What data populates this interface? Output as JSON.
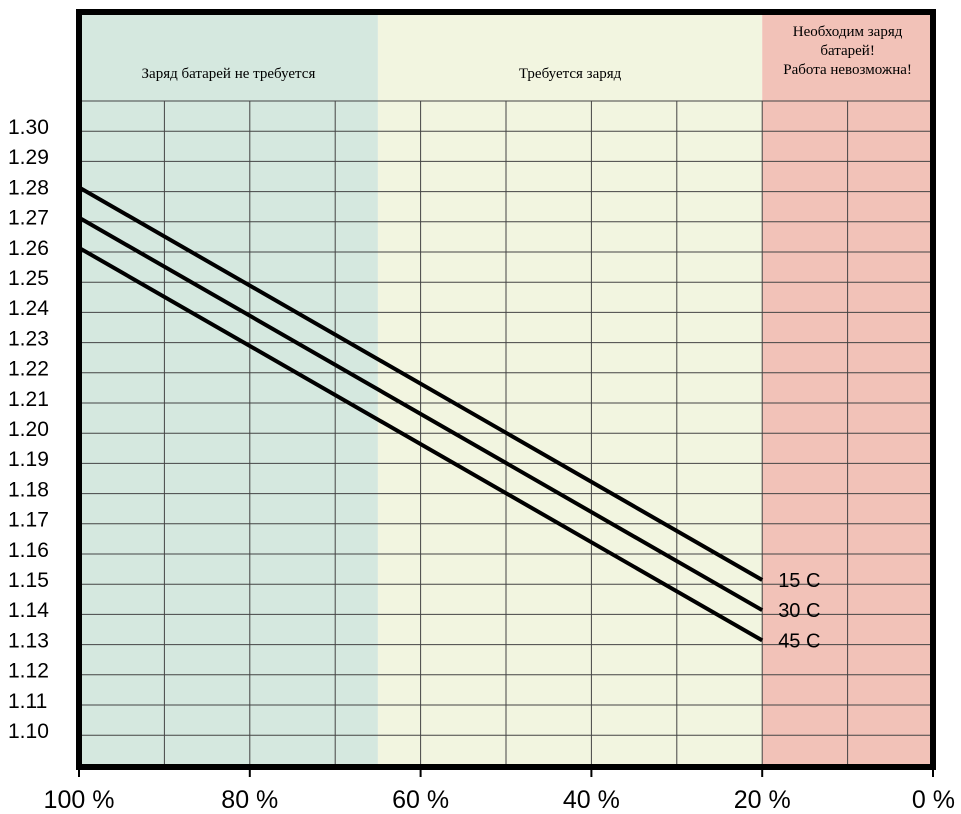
{
  "chart_data": {
    "type": "line",
    "title": "",
    "xlabel": "",
    "ylabel": "",
    "xlim": [
      100,
      0
    ],
    "ylim": [
      1.095,
      1.305
    ],
    "x_ticks": [
      100,
      80,
      60,
      40,
      20,
      0
    ],
    "x_tick_labels": [
      "100 %",
      "80 %",
      "60 %",
      "40 %",
      "20 %",
      "0 %"
    ],
    "y_ticks": [
      1.1,
      1.11,
      1.12,
      1.13,
      1.14,
      1.15,
      1.16,
      1.17,
      1.18,
      1.19,
      1.2,
      1.21,
      1.22,
      1.23,
      1.24,
      1.25,
      1.26,
      1.27,
      1.28,
      1.29,
      1.3
    ],
    "y_tick_labels": [
      "1.10",
      "1.11",
      "1.12",
      "1.13",
      "1.14",
      "1.15",
      "1.16",
      "1.17",
      "1.18",
      "1.19",
      "1.20",
      "1.21",
      "1.22",
      "1.23",
      "1.24",
      "1.25",
      "1.26",
      "1.27",
      "1.28",
      "1.29",
      "1.30"
    ],
    "grid": true,
    "zones": [
      {
        "from": 100,
        "to": 65,
        "color": "#d5e8df",
        "lines": [
          "Заряд батарей не требуется"
        ]
      },
      {
        "from": 65,
        "to": 20,
        "color": "#f2f5e0",
        "lines": [
          "Требуется заряд"
        ]
      },
      {
        "from": 20,
        "to": 0,
        "color": "#f2c2b8",
        "lines": [
          "Необходим заряд",
          "батарей!",
          "Работа невозможна!"
        ]
      }
    ],
    "series": [
      {
        "name": "15 С",
        "x": [
          100,
          20
        ],
        "y": [
          1.28,
          1.15
        ]
      },
      {
        "name": "30 С",
        "x": [
          100,
          20
        ],
        "y": [
          1.27,
          1.14
        ]
      },
      {
        "name": "45 С",
        "x": [
          100,
          20
        ],
        "y": [
          1.26,
          1.13
        ]
      }
    ],
    "colors": {
      "line": "#000000",
      "grid": "#444444",
      "frame": "#000000"
    }
  }
}
